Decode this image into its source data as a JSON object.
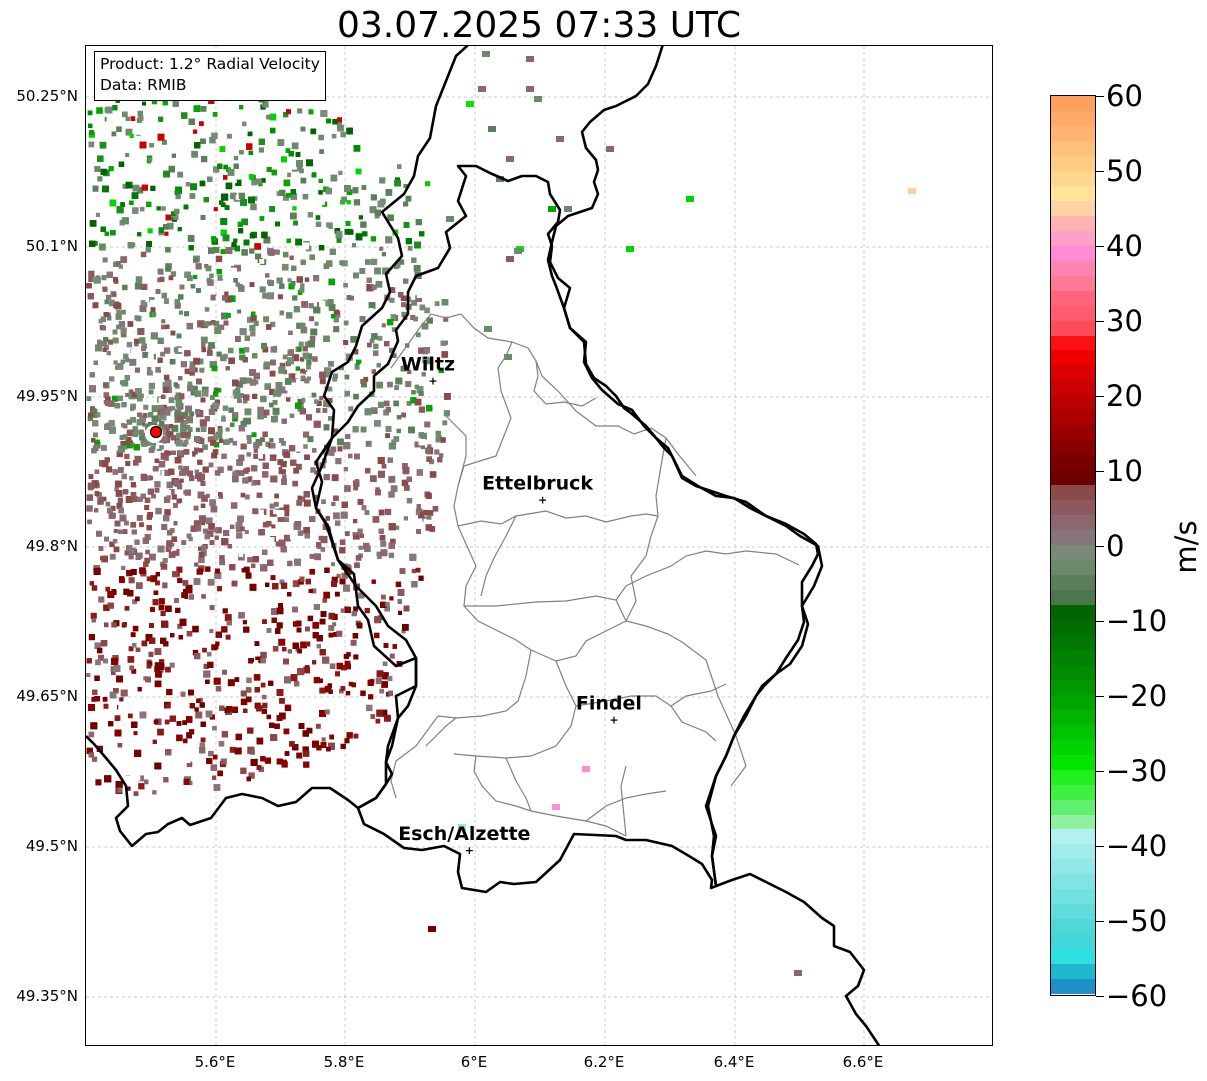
{
  "title": "03.07.2025 07:33 UTC",
  "info": {
    "product": "Product: 1.2° Radial Velocity",
    "data": "Data: RMIB"
  },
  "lat_labels": [
    "50.25°N",
    "50.1°N",
    "49.95°N",
    "49.8°N",
    "49.65°N",
    "49.5°N",
    "49.35°N"
  ],
  "lon_labels": [
    "5.6°E",
    "5.8°E",
    "6°E",
    "6.2°E",
    "6.4°E",
    "6.6°E"
  ],
  "cities": [
    {
      "name": "Wiltz",
      "lon": 5.935,
      "lat": 49.966
    },
    {
      "name": "Ettelbruck",
      "lon": 6.104,
      "lat": 49.847
    },
    {
      "name": "Findel",
      "lon": 6.214,
      "lat": 49.627
    },
    {
      "name": "Esch/Alzette",
      "lon": 5.991,
      "lat": 49.497
    }
  ],
  "radar_site": {
    "lon": 5.505,
    "lat": 49.914
  },
  "map_extent": {
    "lon": [
      5.4,
      6.8
    ],
    "lat": [
      49.3,
      50.3
    ]
  },
  "colorbar": {
    "unit": "m/s",
    "range": [
      -60,
      60
    ],
    "tick_labels": [
      "60",
      "50",
      "40",
      "30",
      "20",
      "10",
      "0",
      "−10",
      "−20",
      "−30",
      "−40",
      "−50",
      "−60"
    ],
    "colors_top_to_bottom": [
      "#ff9f5e",
      "#ffaa66",
      "#ffb56f",
      "#ffc07a",
      "#ffcb84",
      "#ffd88e",
      "#ffe59a",
      "#ffd2a6",
      "#ffb4b4",
      "#ffa0c8",
      "#ff8cd2",
      "#ff82b4",
      "#ff7896",
      "#ff6478",
      "#ff5a6e",
      "#ff4a5a",
      "#ff1010",
      "#ee0000",
      "#dd0000",
      "#cc0000",
      "#bb0000",
      "#aa0000",
      "#990000",
      "#880000",
      "#7a0000",
      "#6e0000",
      "#8a4a4a",
      "#8c5a5e",
      "#8a686e",
      "#86767a",
      "#7a8a7a",
      "#6a8a6a",
      "#5a805a",
      "#4c764c",
      "#006400",
      "#006e00",
      "#007800",
      "#008200",
      "#008c00",
      "#009800",
      "#00a600",
      "#00b400",
      "#00c400",
      "#00d400",
      "#00e400",
      "#20f020",
      "#40f040",
      "#60f070",
      "#90f0a0",
      "#b4f0f0",
      "#a0ecec",
      "#90e8e8",
      "#80e4e4",
      "#70e0e0",
      "#60dcdc",
      "#50d8d8",
      "#40d8d8",
      "#30e0e0",
      "#20b8d0",
      "#2090c8"
    ]
  },
  "colors": {
    "border_country": "#000000",
    "border_canton": "#808080",
    "grid": "#bbbbbb",
    "radar_marker": "#ff0000"
  }
}
